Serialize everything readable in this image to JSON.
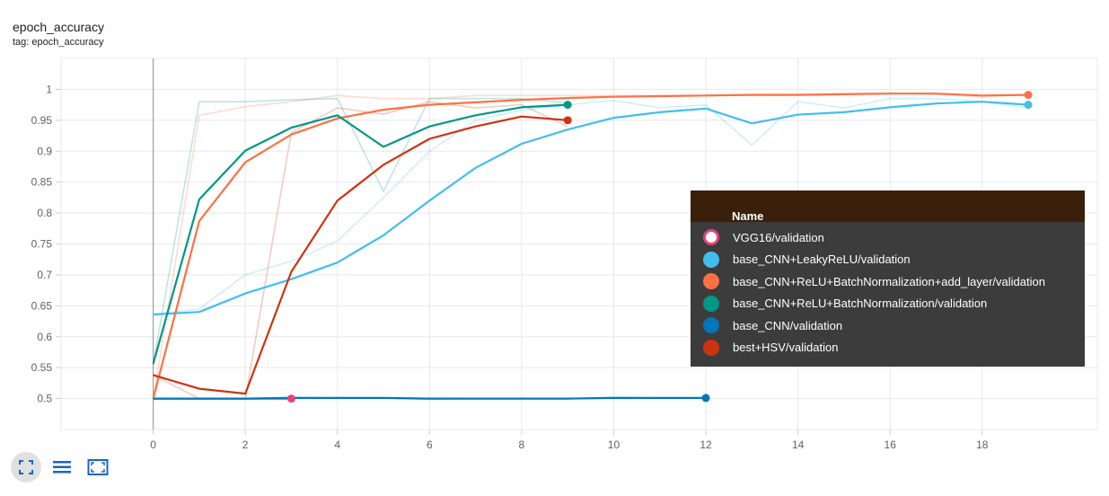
{
  "header": {
    "title": "epoch_accuracy",
    "tag": "tag: epoch_accuracy"
  },
  "tooltip": {
    "header": "Name",
    "rows": [
      {
        "name": "VGG16/validation",
        "color": "#e8417a",
        "hollow": true
      },
      {
        "name": "base_CNN+LeakyReLU/validation",
        "color": "#42bdf0"
      },
      {
        "name": "base_CNN+ReLU+BatchNormalization+add_layer/validation",
        "color": "#ff7043"
      },
      {
        "name": "base_CNN+ReLU+BatchNormalization/validation",
        "color": "#009688"
      },
      {
        "name": "base_CNN/validation",
        "color": "#0077bb"
      },
      {
        "name": "best+HSV/validation",
        "color": "#cc3311"
      }
    ]
  },
  "toolbar": [
    "fit-domain-icon",
    "toggle-log-icon",
    "fullscreen-icon"
  ],
  "chart_data": {
    "type": "line",
    "title": "epoch_accuracy",
    "xlabel": "",
    "ylabel": "",
    "xlim": [
      -2,
      20.5
    ],
    "ylim": [
      0.45,
      1.05
    ],
    "x_ticks": [
      0,
      2,
      4,
      6,
      8,
      10,
      12,
      14,
      16,
      18
    ],
    "y_ticks": [
      0.5,
      0.55,
      0.6,
      0.65,
      0.7,
      0.75,
      0.8,
      0.85,
      0.9,
      0.95,
      1
    ],
    "grid": true,
    "series": [
      {
        "name": "VGG16/validation",
        "color": "#e8417a",
        "x": [
          0,
          1,
          2,
          3
        ],
        "values": [
          0.5,
          0.5,
          0.5,
          0.5
        ],
        "raw": [
          0.5,
          0.5,
          0.5,
          0.5
        ]
      },
      {
        "name": "base_CNN+LeakyReLU/validation",
        "color": "#42bdf0",
        "x": [
          0,
          1,
          2,
          3,
          4,
          5,
          6,
          7,
          8,
          9,
          10,
          11,
          12,
          13,
          14,
          15,
          16,
          17,
          18,
          19
        ],
        "values": [
          0.636,
          0.64,
          0.67,
          0.693,
          0.72,
          0.764,
          0.82,
          0.873,
          0.912,
          0.935,
          0.954,
          0.963,
          0.969,
          0.945,
          0.959,
          0.963,
          0.971,
          0.977,
          0.98,
          0.975
        ],
        "raw": [
          0.636,
          0.645,
          0.7,
          0.722,
          0.755,
          0.825,
          0.9,
          0.95,
          0.966,
          0.975,
          0.982,
          0.97,
          0.975,
          0.91,
          0.98,
          0.97,
          0.985,
          0.985,
          0.98,
          0.97
        ]
      },
      {
        "name": "base_CNN+ReLU+BatchNormalization+add_layer/validation",
        "color": "#ff7043",
        "x": [
          0,
          1,
          2,
          3,
          4,
          5,
          6,
          7,
          8,
          9,
          10,
          11,
          12,
          13,
          14,
          15,
          16,
          17,
          18,
          19
        ],
        "values": [
          0.5,
          0.787,
          0.882,
          0.927,
          0.953,
          0.967,
          0.975,
          0.979,
          0.983,
          0.986,
          0.988,
          0.989,
          0.99,
          0.991,
          0.991,
          0.992,
          0.993,
          0.993,
          0.99,
          0.991
        ],
        "raw": [
          0.5,
          0.958,
          0.972,
          0.98,
          0.99,
          0.985,
          0.985,
          0.99,
          0.99,
          0.99,
          0.99,
          0.99,
          0.99,
          0.992,
          0.992,
          0.993,
          0.994,
          0.992,
          0.988,
          0.992
        ]
      },
      {
        "name": "base_CNN+ReLU+BatchNormalization/validation",
        "color": "#009688",
        "x": [
          0,
          1,
          2,
          3,
          4,
          5,
          6,
          7,
          8,
          9
        ],
        "values": [
          0.556,
          0.822,
          0.901,
          0.938,
          0.958,
          0.907,
          0.94,
          0.958,
          0.971,
          0.975
        ],
        "raw": [
          0.556,
          0.98,
          0.98,
          0.983,
          0.985,
          0.835,
          0.985,
          0.985,
          0.985,
          0.978
        ]
      },
      {
        "name": "base_CNN/validation",
        "color": "#0077bb",
        "x": [
          0,
          1,
          2,
          3,
          4,
          5,
          6,
          7,
          8,
          9,
          10,
          11,
          12
        ],
        "values": [
          0.5,
          0.5,
          0.5,
          0.501,
          0.501,
          0.501,
          0.5,
          0.5,
          0.5,
          0.5,
          0.501,
          0.501,
          0.501
        ],
        "raw": [
          0.5,
          0.5,
          0.5,
          0.502,
          0.501,
          0.501,
          0.499,
          0.5,
          0.5,
          0.5,
          0.502,
          0.501,
          0.501
        ]
      },
      {
        "name": "best+HSV/validation",
        "color": "#cc3311",
        "x": [
          0,
          1,
          2,
          3,
          4,
          5,
          6,
          7,
          8,
          9
        ],
        "values": [
          0.538,
          0.516,
          0.508,
          0.705,
          0.82,
          0.878,
          0.92,
          0.94,
          0.956,
          0.95
        ],
        "raw": [
          0.538,
          0.5,
          0.5,
          0.93,
          0.97,
          0.96,
          0.98,
          0.97,
          0.975,
          0.94
        ]
      }
    ]
  }
}
